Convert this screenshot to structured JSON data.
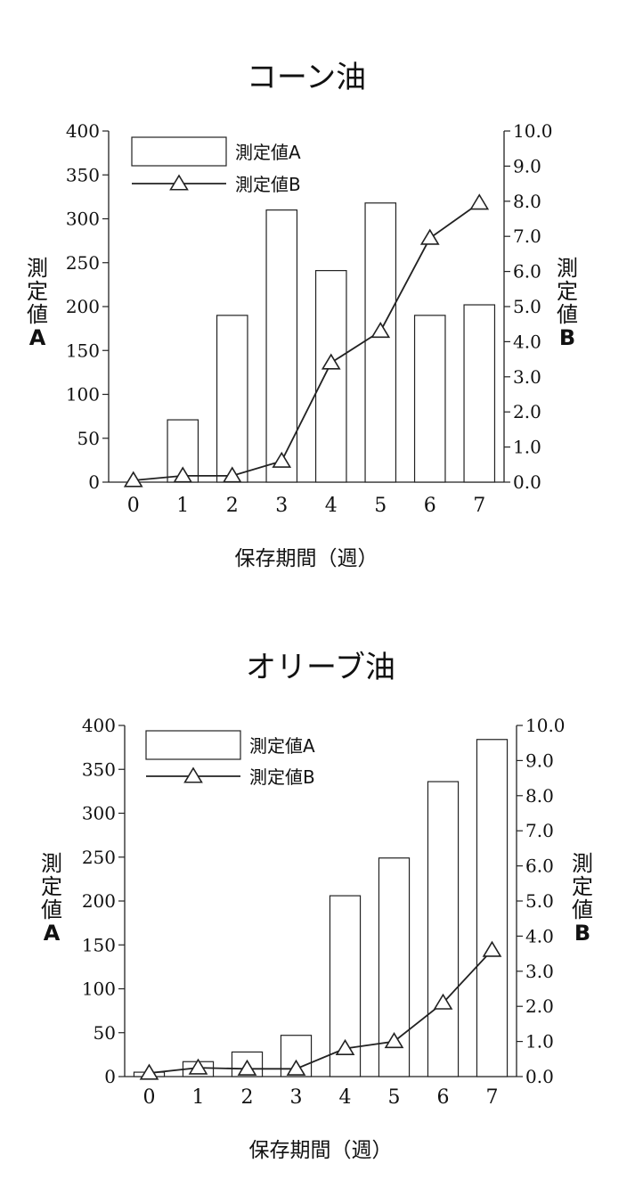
{
  "chart_data": [
    {
      "type": "bar",
      "title": "コーン油",
      "xlabel": "保存期間（週）",
      "ylabel_left": [
        "測",
        "定",
        "値",
        "A"
      ],
      "ylabel_right": [
        "測",
        "定",
        "値",
        "B"
      ],
      "categories": [
        "0",
        "1",
        "2",
        "3",
        "4",
        "5",
        "6",
        "7"
      ],
      "series": [
        {
          "name": "測定値A",
          "kind": "bar",
          "axis": "left",
          "values": [
            0,
            71,
            190,
            310,
            241,
            318,
            190,
            202
          ]
        },
        {
          "name": "測定値B",
          "kind": "line",
          "axis": "right",
          "marker": "triangle",
          "values": [
            0.05,
            0.18,
            0.18,
            0.6,
            3.4,
            4.3,
            6.95,
            7.95
          ]
        }
      ],
      "ylim_left": [
        0,
        400
      ],
      "ylim_right": [
        0,
        10
      ],
      "yticks_left": [
        "0",
        "50",
        "100",
        "150",
        "200",
        "250",
        "300",
        "350",
        "400"
      ],
      "yticks_right": [
        "0.0",
        "1.0",
        "2.0",
        "3.0",
        "4.0",
        "5.0",
        "6.0",
        "7.0",
        "8.0",
        "9.0",
        "10.0"
      ],
      "legend": "top-left",
      "grid": false
    },
    {
      "type": "bar",
      "title": "オリーブ油",
      "xlabel": "保存期間（週）",
      "ylabel_left": [
        "測",
        "定",
        "値",
        "A"
      ],
      "ylabel_right": [
        "測",
        "定",
        "値",
        "B"
      ],
      "categories": [
        "0",
        "1",
        "2",
        "3",
        "4",
        "5",
        "6",
        "7"
      ],
      "series": [
        {
          "name": "測定値A",
          "kind": "bar",
          "axis": "left",
          "values": [
            5,
            17,
            28,
            47,
            206,
            249,
            336,
            384
          ]
        },
        {
          "name": "測定値B",
          "kind": "line",
          "axis": "right",
          "marker": "triangle",
          "values": [
            0.1,
            0.25,
            0.22,
            0.22,
            0.8,
            1.0,
            2.1,
            3.6
          ]
        }
      ],
      "ylim_left": [
        0,
        400
      ],
      "ylim_right": [
        0,
        10
      ],
      "yticks_left": [
        "0",
        "50",
        "100",
        "150",
        "200",
        "250",
        "300",
        "350",
        "400"
      ],
      "yticks_right": [
        "0.0",
        "1.0",
        "2.0",
        "3.0",
        "4.0",
        "5.0",
        "6.0",
        "7.0",
        "8.0",
        "9.0",
        "10.0"
      ],
      "legend": "top-left",
      "grid": false
    }
  ]
}
